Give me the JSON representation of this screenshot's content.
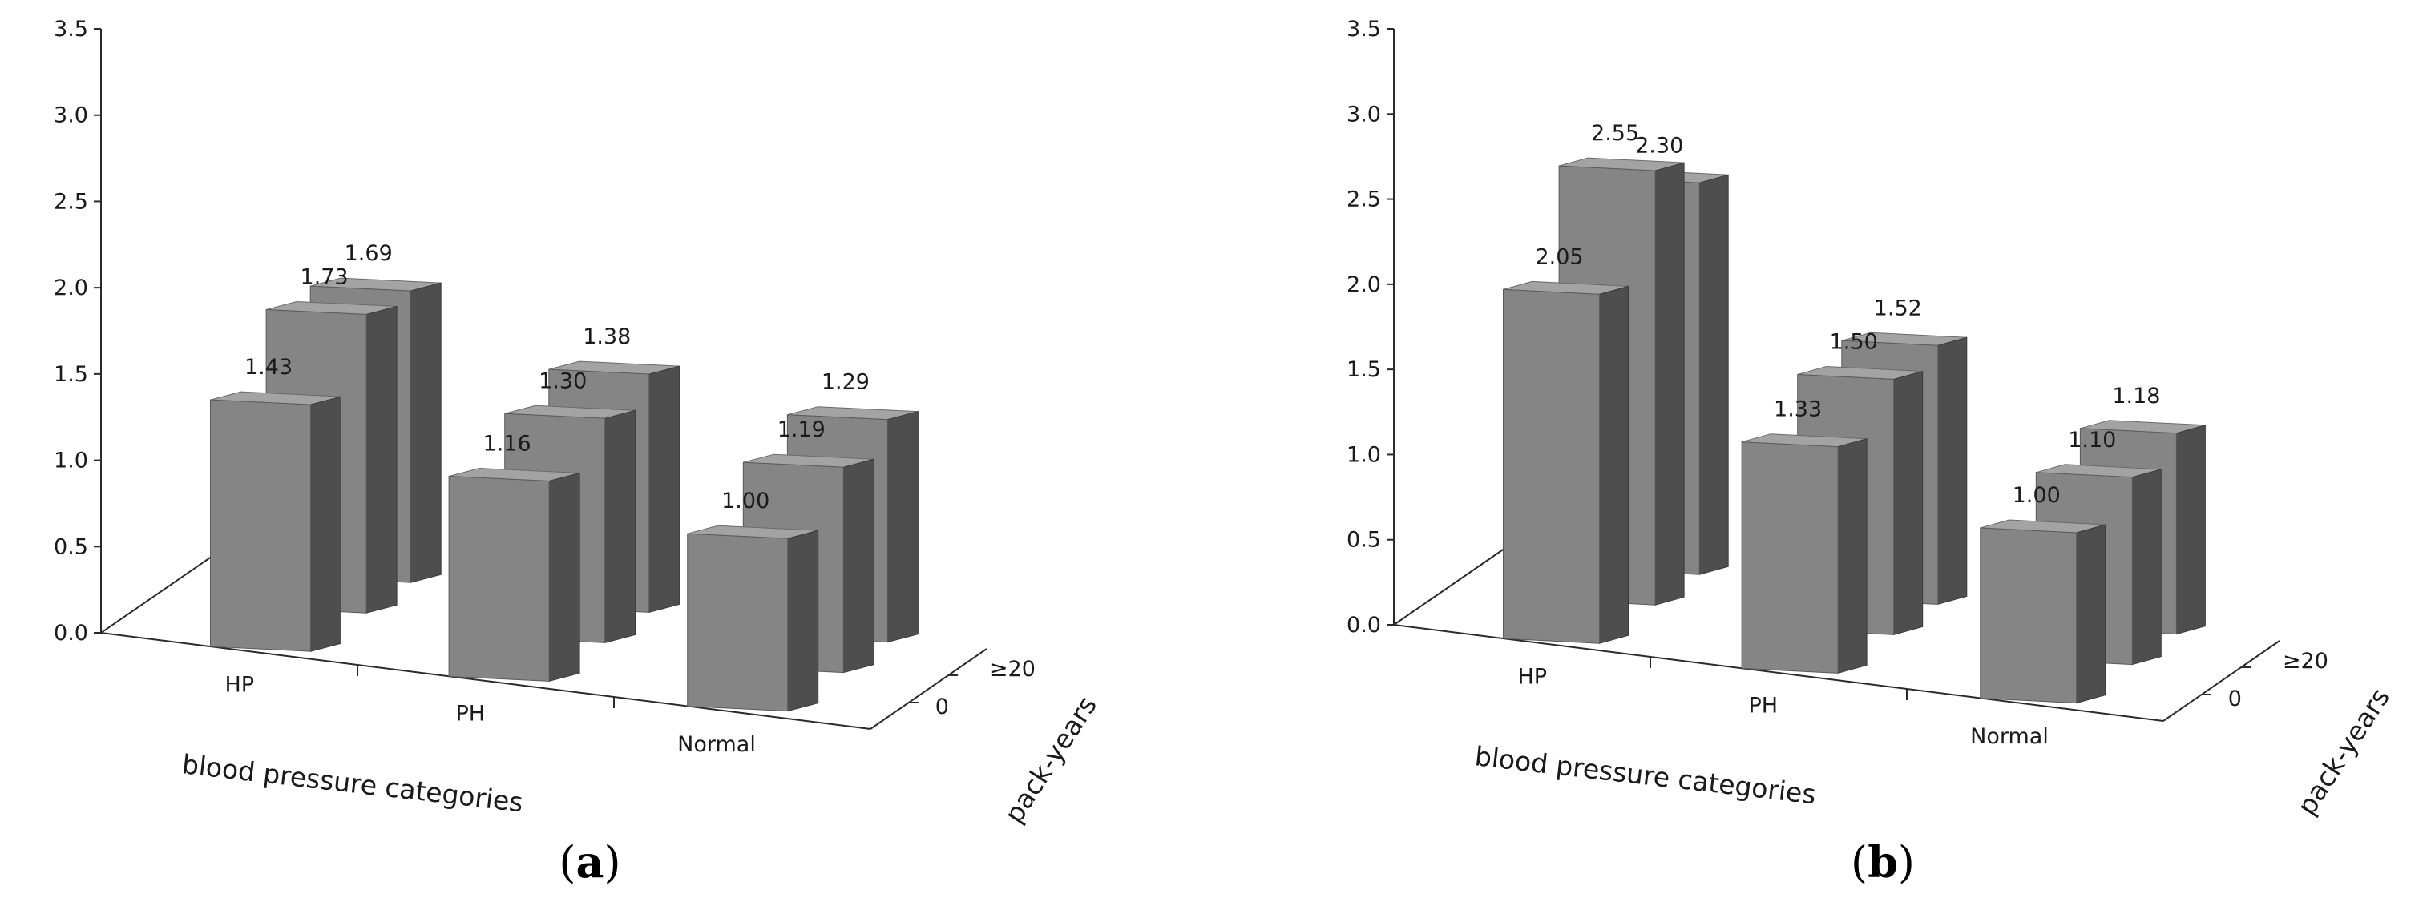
{
  "chart_data": [
    {
      "type": "bar",
      "panel": "a",
      "caption_letter": "a",
      "xlabel": "blood pressure categories",
      "zlabel": "pack-years",
      "ylim": [
        0,
        3.5
      ],
      "yticks": [
        "0.0",
        "0.5",
        "1.0",
        "1.5",
        "2.0",
        "2.5",
        "3.0",
        "3.5"
      ],
      "categories": [
        "HP",
        "PH",
        "Normal"
      ],
      "series": [
        {
          "name": "0",
          "values": [
            1.43,
            1.16,
            1.0
          ],
          "labels": [
            "1.43",
            "1.16",
            "1.00"
          ]
        },
        {
          "name": "≥20",
          "values": [
            1.73,
            1.3,
            1.19
          ],
          "labels": [
            "1.73",
            "1.30",
            "1.19"
          ]
        },
        {
          "name": "",
          "values": [
            1.69,
            1.38,
            1.29
          ],
          "labels": [
            "1.69",
            "1.38",
            "1.29"
          ]
        }
      ],
      "depth_ticks": [
        "0",
        "≥20"
      ]
    },
    {
      "type": "bar",
      "panel": "b",
      "caption_letter": "b",
      "xlabel": "blood pressure categories",
      "zlabel": "pack-years",
      "ylim": [
        0,
        3.5
      ],
      "yticks": [
        "0.0",
        "0.5",
        "1.0",
        "1.5",
        "2.0",
        "2.5",
        "3.0",
        "3.5"
      ],
      "categories": [
        "HP",
        "PH",
        "Normal"
      ],
      "series": [
        {
          "name": "0",
          "values": [
            2.05,
            1.33,
            1.0
          ],
          "labels": [
            "2.05",
            "1.33",
            "1.00"
          ]
        },
        {
          "name": "≥20",
          "values": [
            2.55,
            1.5,
            1.1
          ],
          "labels": [
            "2.55",
            "1.50",
            "1.10"
          ]
        },
        {
          "name": "",
          "values": [
            2.3,
            1.52,
            1.18
          ],
          "labels": [
            "2.30",
            "1.52",
            "1.18"
          ]
        }
      ],
      "depth_ticks": [
        "0",
        "≥20"
      ]
    }
  ],
  "colors": {
    "front": "#858585",
    "top": "#a3a3a3",
    "side": "#4e4e4e",
    "axis": "#2a2a2a"
  }
}
